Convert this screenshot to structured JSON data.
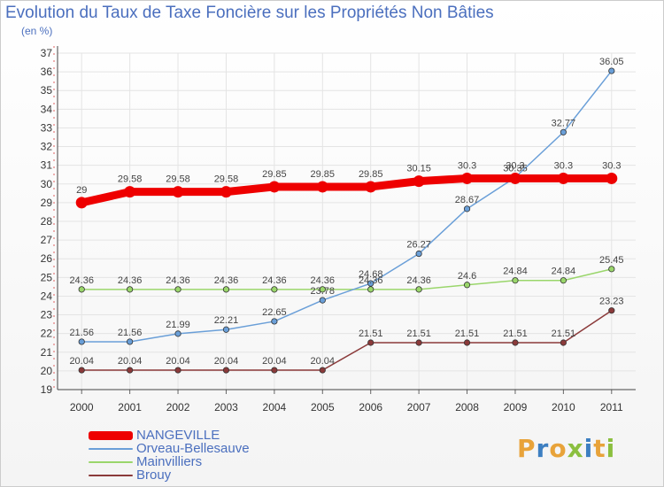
{
  "title": "Evolution du Taux de Taxe Foncière sur les Propriétés Non Bâties",
  "unit": "(en %)",
  "brand": {
    "letters": [
      "P",
      "r",
      "o",
      "x",
      "i",
      "t",
      "i"
    ],
    "colors": [
      "#e8a33a",
      "#3d7fc1",
      "#e8a33a",
      "#8bbf3f",
      "#3d7fc1",
      "#e8a33a",
      "#8bbf3f"
    ]
  },
  "chart_data": {
    "type": "line",
    "x": [
      "2000",
      "2001",
      "2002",
      "2003",
      "2004",
      "2005",
      "2006",
      "2007",
      "2008",
      "2009",
      "2010",
      "2011"
    ],
    "ylim": [
      19,
      37
    ],
    "yticks": [
      "19",
      "20",
      "21",
      "22",
      "23",
      "24",
      "25",
      "26",
      "27",
      "28",
      "29",
      "30",
      "31",
      "32",
      "33",
      "34",
      "35",
      "36",
      "37"
    ],
    "grid": true,
    "legend": "bottom-left",
    "series": [
      {
        "name": "NANGEVILLE",
        "color": "#ee0000",
        "values": [
          29,
          29.58,
          29.58,
          29.58,
          29.85,
          29.85,
          29.85,
          30.15,
          30.3,
          30.3,
          30.3,
          30.3
        ],
        "labels": [
          "29",
          "29.58",
          "29.58",
          "29.58",
          "29.85",
          "29.85",
          "29.85",
          "30.15",
          "30.3",
          "30.3",
          "30.3",
          "30.3"
        ]
      },
      {
        "name": "Orveau-Bellesauve",
        "color": "#6a9fd8",
        "values": [
          21.56,
          21.56,
          21.99,
          22.21,
          22.65,
          23.78,
          24.68,
          26.27,
          28.67,
          30.35,
          32.77,
          36.05
        ],
        "labels": [
          "21.56",
          "21.56",
          "21.99",
          "22.21",
          "22.65",
          "23.78",
          "24.68",
          "26.27",
          "28.67",
          "30.35",
          "32.77",
          "36.05"
        ]
      },
      {
        "name": "Mainvilliers",
        "color": "#9ad66b",
        "values": [
          24.36,
          24.36,
          24.36,
          24.36,
          24.36,
          24.36,
          24.36,
          24.36,
          24.6,
          24.84,
          24.84,
          25.45
        ],
        "labels": [
          "24.36",
          "24.36",
          "24.36",
          "24.36",
          "24.36",
          "24.36",
          "24.36",
          "24.36",
          "24.6",
          "24.84",
          "24.84",
          "25.45"
        ]
      },
      {
        "name": "Brouy",
        "color": "#8b3a3a",
        "values": [
          20.04,
          20.04,
          20.04,
          20.04,
          20.04,
          20.04,
          21.51,
          21.51,
          21.51,
          21.51,
          21.51,
          23.23
        ],
        "labels": [
          "20.04",
          "20.04",
          "20.04",
          "20.04",
          "20.04",
          "20.04",
          "21.51",
          "21.51",
          "21.51",
          "21.51",
          "21.51",
          "23.23"
        ]
      }
    ]
  }
}
